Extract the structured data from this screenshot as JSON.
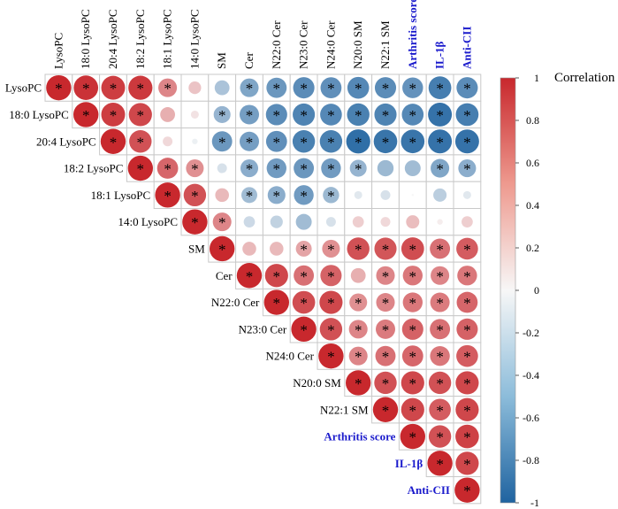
{
  "chart_data": {
    "type": "heatmap",
    "title": "",
    "subtitle": "",
    "colorbar_label": "Correlation",
    "colorbar_range": [
      -1,
      1
    ],
    "colorbar_ticks": [
      "1",
      "0.8",
      "0.6",
      "0.4",
      "0.2",
      "0",
      "-0.2",
      "-0.4",
      "-0.6",
      "-0.8",
      "-1"
    ],
    "colors": {
      "positive": "#c8282d",
      "neutral": "#f7f7f7",
      "negative": "#1f63a0",
      "highlight_label": "#1a1acc"
    },
    "variables": [
      "LysoPC",
      "18:0  LysoPC",
      "20:4  LysoPC",
      "18:2  LysoPC",
      "18:1  LysoPC",
      "14:0  LysoPC",
      "SM",
      "Cer",
      "N22:0 Cer",
      "N23:0 Cer",
      "N24:0 Cer",
      "N20:0  SM",
      "N22:1  SM",
      "Arthritis score",
      "IL-1β",
      "Anti-CII"
    ],
    "highlighted_variables": [
      "Arthritis score",
      "IL-1β",
      "Anti-CII"
    ],
    "significance_marker": "*",
    "upper_triangle_values": [
      [
        1.0,
        0.95,
        0.9,
        0.92,
        0.55,
        0.25,
        -0.35,
        -0.55,
        -0.65,
        -0.72,
        -0.7,
        -0.75,
        -0.72,
        -0.68,
        -0.82,
        -0.72
      ],
      [
        1.0,
        0.9,
        0.85,
        0.35,
        0.1,
        -0.45,
        -0.6,
        -0.72,
        -0.78,
        -0.75,
        -0.8,
        -0.78,
        -0.75,
        -0.9,
        -0.82
      ],
      [
        1.0,
        0.8,
        0.15,
        -0.05,
        -0.65,
        -0.6,
        -0.7,
        -0.8,
        -0.8,
        -0.92,
        -0.88,
        -0.88,
        -0.9,
        -0.9
      ],
      [
        1.0,
        0.7,
        0.5,
        -0.15,
        -0.5,
        -0.62,
        -0.65,
        -0.62,
        -0.45,
        -0.42,
        -0.4,
        -0.55,
        -0.5
      ],
      [
        1.0,
        0.8,
        0.3,
        -0.4,
        -0.5,
        -0.62,
        -0.42,
        -0.1,
        -0.15,
        0.0,
        -0.28,
        -0.1
      ],
      [
        1.0,
        0.55,
        -0.2,
        -0.25,
        -0.4,
        -0.15,
        0.2,
        0.15,
        0.28,
        0.05,
        0.2
      ],
      [
        1.0,
        0.3,
        0.3,
        0.4,
        0.5,
        0.8,
        0.78,
        0.82,
        0.65,
        0.75
      ],
      [
        1.0,
        0.85,
        0.65,
        0.72,
        0.35,
        0.55,
        0.62,
        0.55,
        0.62
      ],
      [
        1.0,
        0.82,
        0.85,
        0.5,
        0.55,
        0.62,
        0.6,
        0.7
      ],
      [
        1.0,
        0.8,
        0.55,
        0.6,
        0.72,
        0.65,
        0.72
      ],
      [
        1.0,
        0.55,
        0.65,
        0.7,
        0.62,
        0.75
      ],
      [
        1.0,
        0.8,
        0.85,
        0.8,
        0.85
      ],
      [
        1.0,
        0.85,
        0.75,
        0.85
      ],
      [
        1.0,
        0.8,
        0.88
      ],
      [
        1.0,
        0.85
      ],
      [
        1.0
      ]
    ],
    "significant": [
      [
        1,
        1,
        1,
        1,
        1,
        0,
        0,
        1,
        1,
        1,
        1,
        1,
        1,
        1,
        1,
        1
      ],
      [
        1,
        1,
        1,
        0,
        0,
        1,
        1,
        1,
        1,
        1,
        1,
        1,
        1,
        1,
        1
      ],
      [
        1,
        1,
        0,
        0,
        1,
        1,
        1,
        1,
        1,
        1,
        1,
        1,
        1,
        1
      ],
      [
        1,
        1,
        1,
        0,
        1,
        1,
        1,
        1,
        1,
        0,
        0,
        1,
        1
      ],
      [
        1,
        1,
        0,
        1,
        1,
        1,
        1,
        0,
        0,
        0,
        0,
        0
      ],
      [
        1,
        1,
        0,
        0,
        0,
        0,
        0,
        0,
        0,
        0,
        0
      ],
      [
        1,
        0,
        0,
        1,
        1,
        1,
        1,
        1,
        1,
        1
      ],
      [
        1,
        1,
        1,
        1,
        0,
        1,
        1,
        1,
        1
      ],
      [
        1,
        1,
        1,
        1,
        1,
        1,
        1,
        1
      ],
      [
        1,
        1,
        1,
        1,
        1,
        1,
        1
      ],
      [
        1,
        1,
        1,
        1,
        1,
        1
      ],
      [
        1,
        1,
        1,
        1,
        1
      ],
      [
        1,
        1,
        1,
        1
      ],
      [
        1,
        1,
        1
      ],
      [
        1,
        1
      ],
      [
        1
      ]
    ]
  }
}
